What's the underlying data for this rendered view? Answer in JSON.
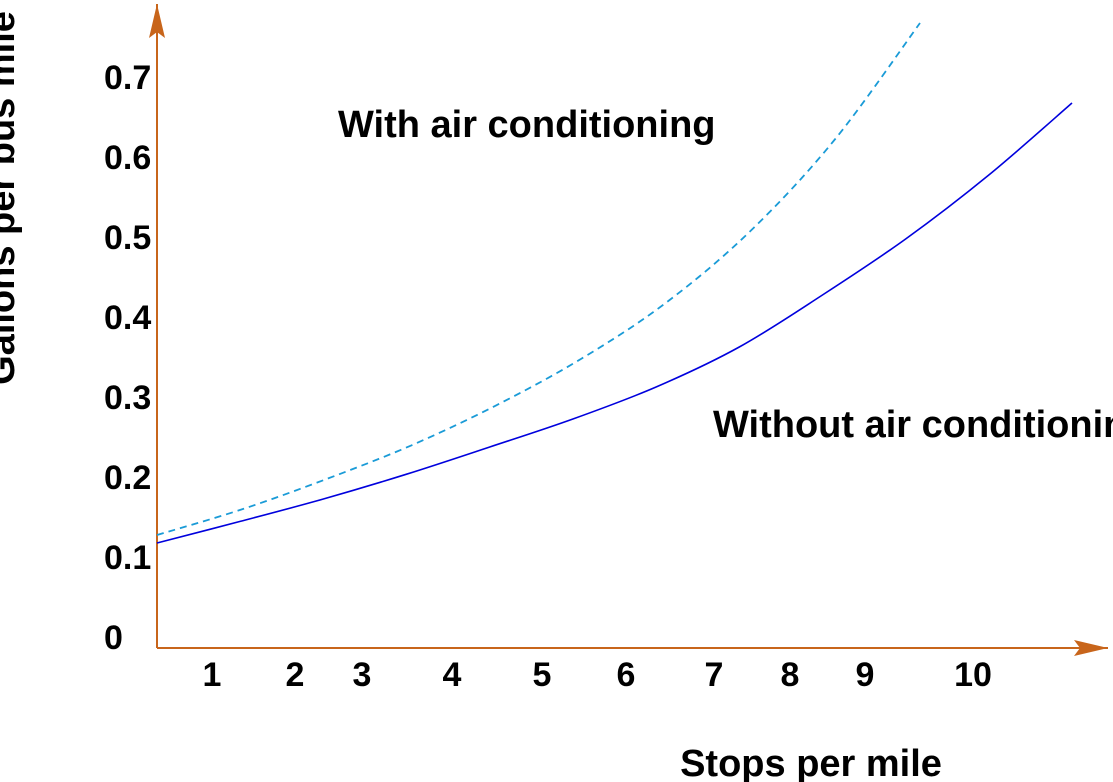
{
  "chart_data": {
    "type": "line",
    "xlabel": "Stops per mile",
    "ylabel": "Gallons per bus mile",
    "x_ticks": [
      1,
      2,
      3,
      4,
      5,
      6,
      7,
      8,
      9,
      10
    ],
    "y_ticks": [
      0,
      0.1,
      0.2,
      0.3,
      0.4,
      0.5,
      0.6,
      0.7
    ],
    "series": [
      {
        "name": "With air conditioning",
        "style": "dashed",
        "color": "#1a9bd7",
        "points": [
          [
            0,
            0.13
          ],
          [
            1,
            0.162
          ],
          [
            2,
            0.2
          ],
          [
            3,
            0.242
          ],
          [
            4,
            0.292
          ],
          [
            5,
            0.35
          ],
          [
            6,
            0.42
          ],
          [
            7,
            0.51
          ],
          [
            8,
            0.625
          ],
          [
            9,
            0.77
          ]
        ]
      },
      {
        "name": "Without air conditioning",
        "style": "solid",
        "color": "#0000dd",
        "points": [
          [
            0,
            0.12
          ],
          [
            1,
            0.147
          ],
          [
            2,
            0.175
          ],
          [
            3,
            0.206
          ],
          [
            4,
            0.24
          ],
          [
            5,
            0.275
          ],
          [
            6,
            0.315
          ],
          [
            7,
            0.365
          ],
          [
            8,
            0.43
          ],
          [
            9,
            0.5
          ],
          [
            10,
            0.58
          ],
          [
            11,
            0.67
          ]
        ]
      }
    ],
    "annotations": [
      {
        "text": "With air conditioning"
      },
      {
        "text": "Without air conditioning"
      }
    ],
    "axis_color": "#c8651b"
  }
}
